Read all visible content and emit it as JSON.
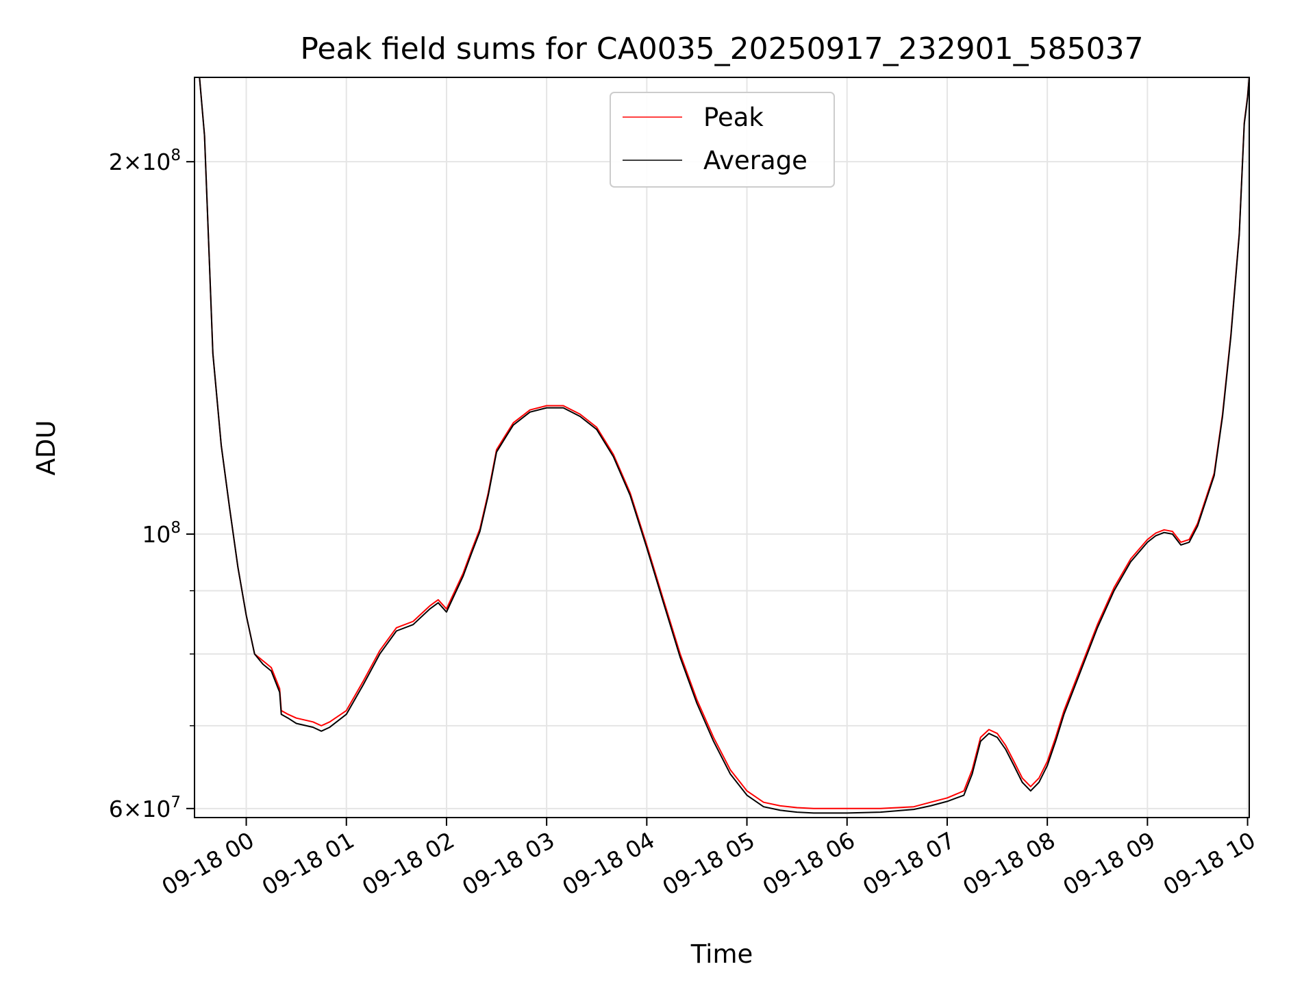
{
  "chart_data": {
    "type": "line",
    "title": "Peak field sums for CA0035_20250917_232901_585037",
    "xlabel": "Time",
    "ylabel": "ADU",
    "xscale": "time",
    "yscale": "log",
    "xlim": [
      "2025-09-17 23:29",
      "2025-09-18 10:01"
    ],
    "ylim": [
      59000000,
      234000000
    ],
    "xticks": [
      {
        "value": "2025-09-18 00:00",
        "label": "09-18 00"
      },
      {
        "value": "2025-09-18 01:00",
        "label": "09-18 01"
      },
      {
        "value": "2025-09-18 02:00",
        "label": "09-18 02"
      },
      {
        "value": "2025-09-18 03:00",
        "label": "09-18 03"
      },
      {
        "value": "2025-09-18 04:00",
        "label": "09-18 04"
      },
      {
        "value": "2025-09-18 05:00",
        "label": "09-18 05"
      },
      {
        "value": "2025-09-18 06:00",
        "label": "09-18 06"
      },
      {
        "value": "2025-09-18 07:00",
        "label": "09-18 07"
      },
      {
        "value": "2025-09-18 08:00",
        "label": "09-18 08"
      },
      {
        "value": "2025-09-18 09:00",
        "label": "09-18 09"
      },
      {
        "value": "2025-09-18 10:00",
        "label": "09-18 10"
      }
    ],
    "yticks_major": [
      {
        "value": 60000000,
        "base": "6",
        "exp": "7"
      },
      {
        "value": 100000000,
        "base": "",
        "exp": "8"
      },
      {
        "value": 200000000,
        "base": "2",
        "exp": "8"
      }
    ],
    "yticks_minor": [
      70000000,
      80000000,
      90000000
    ],
    "grid": true,
    "legend": "top-center",
    "x": [
      "2025-09-17 23:30",
      "2025-09-17 23:32",
      "2025-09-17 23:35",
      "2025-09-17 23:38",
      "2025-09-17 23:40",
      "2025-09-17 23:45",
      "2025-09-17 23:50",
      "2025-09-17 23:55",
      "2025-09-18 00:00",
      "2025-09-18 00:05",
      "2025-09-18 00:10",
      "2025-09-18 00:15",
      "2025-09-18 00:20",
      "2025-09-18 00:21",
      "2025-09-18 00:25",
      "2025-09-18 00:30",
      "2025-09-18 00:40",
      "2025-09-18 00:45",
      "2025-09-18 00:50",
      "2025-09-18 01:00",
      "2025-09-18 01:10",
      "2025-09-18 01:20",
      "2025-09-18 01:30",
      "2025-09-18 01:40",
      "2025-09-18 01:50",
      "2025-09-18 01:55",
      "2025-09-18 02:00",
      "2025-09-18 02:10",
      "2025-09-18 02:15",
      "2025-09-18 02:20",
      "2025-09-18 02:25",
      "2025-09-18 02:30",
      "2025-09-18 02:35",
      "2025-09-18 02:40",
      "2025-09-18 02:50",
      "2025-09-18 03:00",
      "2025-09-18 03:10",
      "2025-09-18 03:20",
      "2025-09-18 03:30",
      "2025-09-18 03:40",
      "2025-09-18 03:50",
      "2025-09-18 04:00",
      "2025-09-18 04:10",
      "2025-09-18 04:20",
      "2025-09-18 04:30",
      "2025-09-18 04:40",
      "2025-09-18 04:50",
      "2025-09-18 05:00",
      "2025-09-18 05:10",
      "2025-09-18 05:20",
      "2025-09-18 05:30",
      "2025-09-18 05:40",
      "2025-09-18 05:50",
      "2025-09-18 06:00",
      "2025-09-18 06:20",
      "2025-09-18 06:40",
      "2025-09-18 06:50",
      "2025-09-18 07:00",
      "2025-09-18 07:10",
      "2025-09-18 07:15",
      "2025-09-18 07:20",
      "2025-09-18 07:25",
      "2025-09-18 07:30",
      "2025-09-18 07:35",
      "2025-09-18 07:40",
      "2025-09-18 07:45",
      "2025-09-18 07:50",
      "2025-09-18 07:55",
      "2025-09-18 08:00",
      "2025-09-18 08:05",
      "2025-09-18 08:10",
      "2025-09-18 08:20",
      "2025-09-18 08:30",
      "2025-09-18 08:40",
      "2025-09-18 08:50",
      "2025-09-18 09:00",
      "2025-09-18 09:05",
      "2025-09-18 09:10",
      "2025-09-18 09:15",
      "2025-09-18 09:20",
      "2025-09-18 09:25",
      "2025-09-18 09:30",
      "2025-09-18 09:40",
      "2025-09-18 09:45",
      "2025-09-18 09:50",
      "2025-09-18 09:55",
      "2025-09-18 09:58",
      "2025-09-18 10:00",
      "2025-09-18 10:01"
    ],
    "series": [
      {
        "name": "Peak",
        "color": "#ff0000",
        "values": [
          234000000,
          234000000,
          210000000,
          165000000,
          140000000,
          118000000,
          105000000,
          94000000,
          86000000,
          80000000,
          79000000,
          78000000,
          75000000,
          72000000,
          71500000,
          71000000,
          70500000,
          70000000,
          70500000,
          72000000,
          76000000,
          80500000,
          84000000,
          85000000,
          87500000,
          88500000,
          87000000,
          93000000,
          97000000,
          101000000,
          108000000,
          117000000,
          120000000,
          123000000,
          126000000,
          127000000,
          127000000,
          125000000,
          122000000,
          116000000,
          108000000,
          98000000,
          88500000,
          80000000,
          73500000,
          68500000,
          64500000,
          62000000,
          60700000,
          60300000,
          60100000,
          60000000,
          60000000,
          60000000,
          60000000,
          60200000,
          60700000,
          61200000,
          62000000,
          64500000,
          68500000,
          69500000,
          69000000,
          67500000,
          65500000,
          63500000,
          62500000,
          63500000,
          65500000,
          68500000,
          72000000,
          78000000,
          84500000,
          90500000,
          95500000,
          99000000,
          100200000,
          100800000,
          100500000,
          98500000,
          99000000,
          102000000,
          112000000,
          125000000,
          145000000,
          175000000,
          215000000,
          226000000,
          234000000
        ]
      },
      {
        "name": "Average",
        "color": "#000000",
        "values": [
          234000000,
          234000000,
          210000000,
          165000000,
          140000000,
          118000000,
          105000000,
          94000000,
          86000000,
          80000000,
          78500000,
          77500000,
          74500000,
          71500000,
          71000000,
          70300000,
          69800000,
          69300000,
          69800000,
          71500000,
          75500000,
          80000000,
          83500000,
          84500000,
          87000000,
          88000000,
          86500000,
          92500000,
          96500000,
          100500000,
          107500000,
          116500000,
          119500000,
          122500000,
          125500000,
          126500000,
          126500000,
          124500000,
          121500000,
          115500000,
          107500000,
          97500000,
          88000000,
          79500000,
          73000000,
          68000000,
          64000000,
          61500000,
          60200000,
          59800000,
          59600000,
          59500000,
          59500000,
          59500000,
          59600000,
          59900000,
          60300000,
          60800000,
          61500000,
          64000000,
          68000000,
          69000000,
          68500000,
          67000000,
          65000000,
          63000000,
          62000000,
          63000000,
          65000000,
          68000000,
          71500000,
          77500000,
          84000000,
          90000000,
          95000000,
          98500000,
          99700000,
          100300000,
          100000000,
          98000000,
          98500000,
          101500000,
          111500000,
          124500000,
          144500000,
          174500000,
          214500000,
          225500000,
          234000000
        ]
      }
    ]
  }
}
